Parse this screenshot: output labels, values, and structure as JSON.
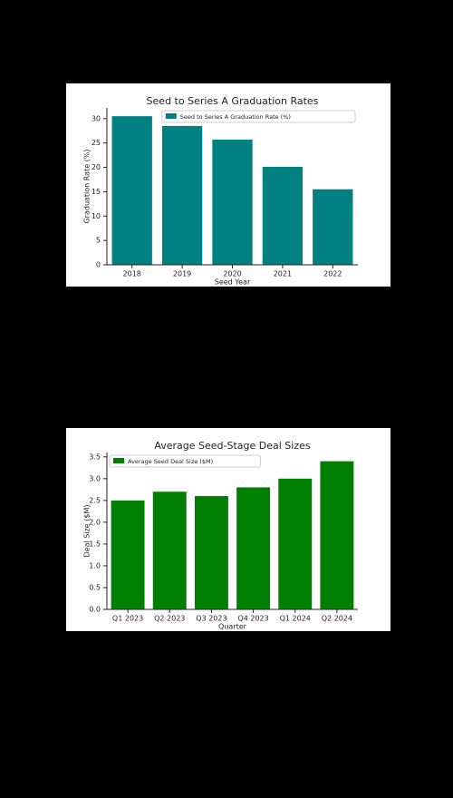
{
  "chart_data": [
    {
      "type": "bar",
      "title": "Seed to Series A Graduation Rates",
      "x_label": "Seed Year",
      "y_label": "Graduation Rate (%)",
      "categories": [
        "2018",
        "2019",
        "2020",
        "2021",
        "2022"
      ],
      "series": [
        {
          "name": "Seed to Series A Graduation Rate (%)",
          "color": "#008080",
          "values": [
            30.5,
            28.5,
            25.7,
            20.1,
            15.5
          ]
        }
      ],
      "ylim": [
        0,
        32.2
      ],
      "yticks": [
        0,
        5,
        10,
        15,
        20,
        25,
        30
      ],
      "legend": "upper right"
    },
    {
      "type": "bar",
      "title": "Average Seed-Stage Deal Sizes",
      "x_label": "Quarter",
      "y_label": "Deal Size ($M)",
      "categories": [
        "Q1 2023",
        "Q2 2023",
        "Q3 2023",
        "Q4 2023",
        "Q1 2024",
        "Q2 2024"
      ],
      "series": [
        {
          "name": "Average Seed Deal Size ($M)",
          "color": "#008000",
          "values": [
            2.5,
            2.7,
            2.6,
            2.8,
            3.0,
            3.4
          ]
        }
      ],
      "ylim": [
        0,
        3.6
      ],
      "yticks": [
        {
          "value": 0,
          "label": "0.0"
        },
        0.5,
        {
          "value": 1,
          "label": "1.0"
        },
        1.5,
        {
          "value": 2,
          "label": "2.0"
        },
        2.5,
        {
          "value": 3,
          "label": "3.0"
        },
        3.5
      ],
      "legend": "upper left"
    }
  ]
}
